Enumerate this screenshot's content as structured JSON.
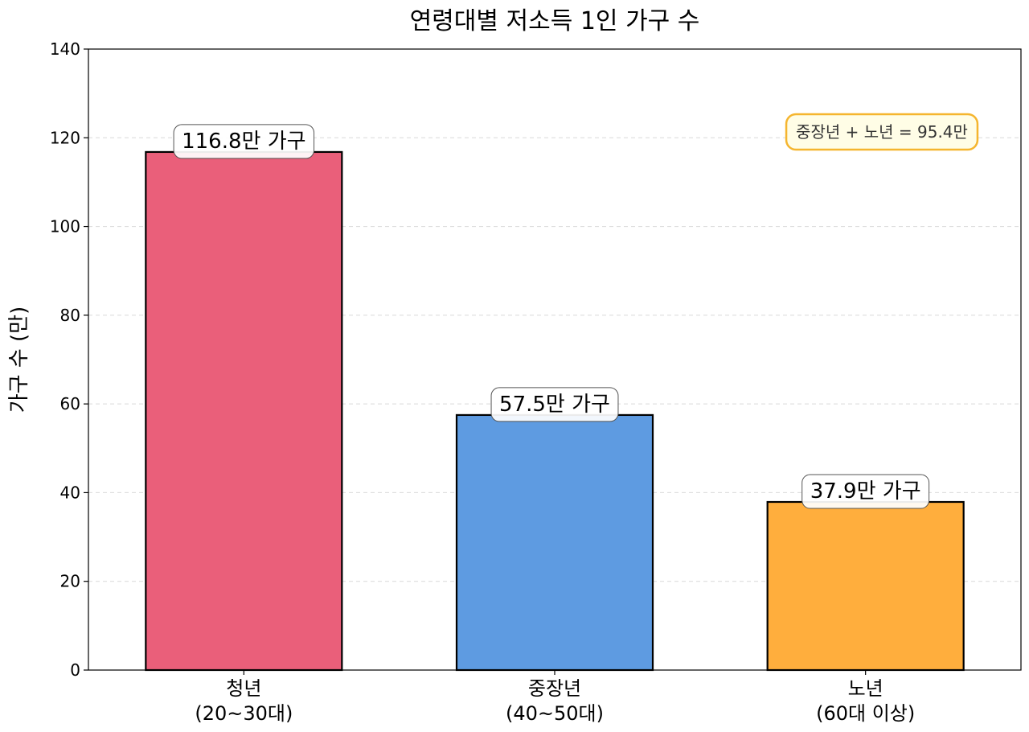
{
  "chart_data": {
    "type": "bar",
    "title": "연령대별 저소득 1인 가구 수",
    "ylabel": "가구 수 (만)",
    "xlabel": "",
    "ylim": [
      0,
      140
    ],
    "yticks": [
      0,
      20,
      40,
      60,
      80,
      100,
      120,
      140
    ],
    "grid": "horizontal dashed",
    "categories": [
      [
        "청년",
        "(20~30대)"
      ],
      [
        "중장년",
        "(40~50대)"
      ],
      [
        "노년",
        "(60대 이상)"
      ]
    ],
    "values": [
      116.8,
      57.5,
      37.9
    ],
    "data_labels": [
      "116.8만 가구",
      "57.5만 가구",
      "37.9만 가구"
    ],
    "colors": [
      "#EA5F7A",
      "#5E9BE1",
      "#FFAE3D"
    ],
    "annotation": {
      "text": "중장년 + 노년 = 95.4만",
      "placement": "top-right",
      "background": "#FFFDE6",
      "border": "#F5B52E"
    }
  }
}
